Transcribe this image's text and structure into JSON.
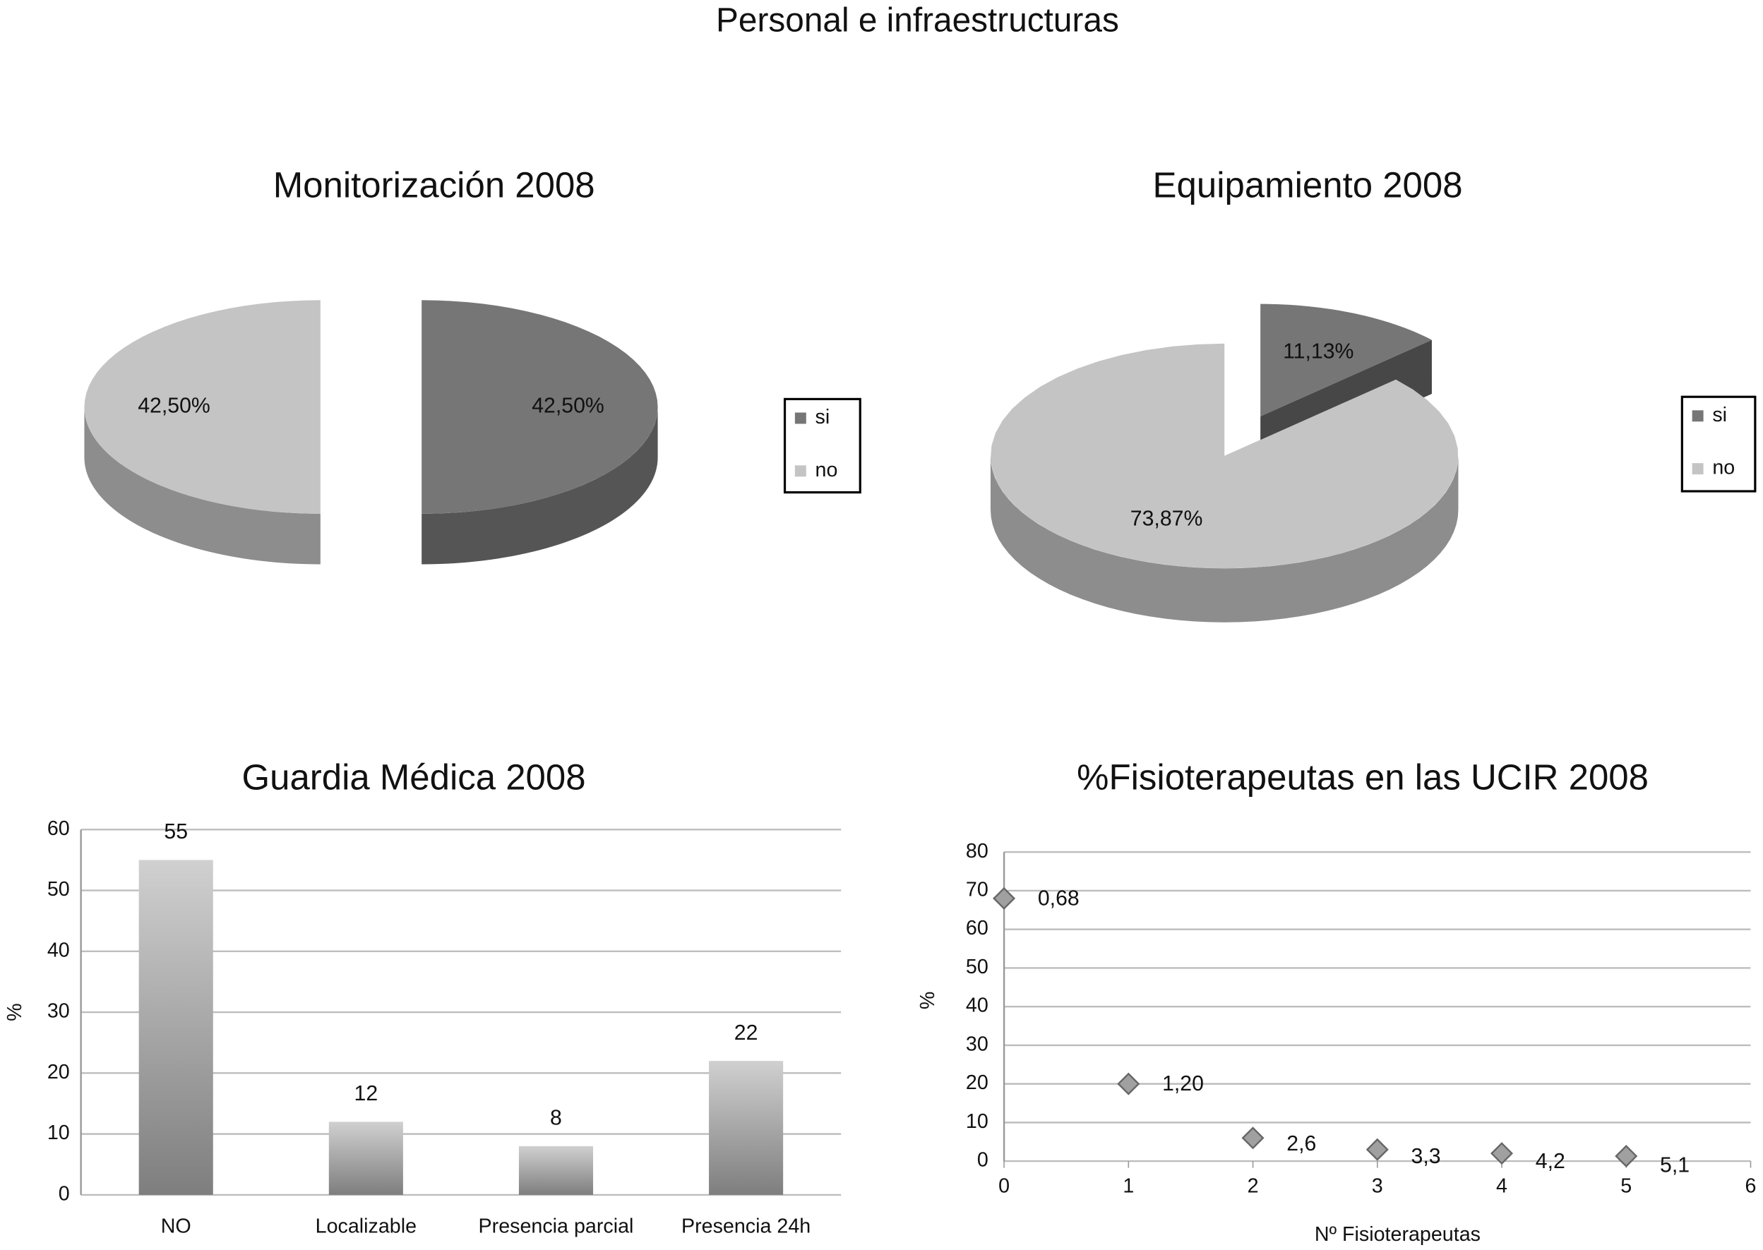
{
  "title": "Personal e infraestructuras",
  "chart_data": [
    {
      "type": "pie",
      "title": "Monitorización 2008",
      "series": [
        {
          "name": "si",
          "color": "#767676",
          "values": [
            42.5
          ],
          "value_labels": [
            "42,50%"
          ]
        },
        {
          "name": "no",
          "color": "#c4c4c4",
          "values": [
            42.5
          ],
          "value_labels": [
            "42,50%"
          ]
        }
      ],
      "legend": "right"
    },
    {
      "type": "pie",
      "title": "Equipamiento  2008",
      "series": [
        {
          "name": "si",
          "color": "#767676",
          "values": [
            11.13
          ],
          "value_labels": [
            "11,13%"
          ]
        },
        {
          "name": "no",
          "color": "#c4c4c4",
          "values": [
            73.87
          ],
          "value_labels": [
            "73,87%"
          ]
        }
      ],
      "legend": "right"
    },
    {
      "type": "bar",
      "title": "Guardia Médica 2008",
      "ylabel": "%",
      "categories": [
        "NO",
        "Localizable",
        "Presencia parcial",
        "Presencia 24h"
      ],
      "values": [
        55,
        12,
        8,
        22
      ],
      "color": "#a8a8a8",
      "ylim": [
        0,
        60
      ],
      "yticks": [
        0,
        10,
        20,
        30,
        40,
        50,
        60
      ],
      "grid": true
    },
    {
      "type": "scatter",
      "title": "%Fisioterapeutas en las UCIR 2008",
      "ylabel": "%",
      "xlabel": "Nº  Fisioterapeutas",
      "x": [
        0,
        1,
        2,
        3,
        4,
        5
      ],
      "values": [
        68,
        20,
        6,
        3,
        2,
        1.3
      ],
      "color": "#a0a0a0",
      "annotations": [
        "0,68",
        "1,20",
        "2,6",
        "3,3",
        "4,2",
        "5,1"
      ],
      "xlim": [
        0,
        6
      ],
      "xticks": [
        0,
        1,
        2,
        3,
        4,
        5,
        6
      ],
      "ylim": [
        0,
        80
      ],
      "yticks": [
        0,
        10,
        20,
        30,
        40,
        50,
        60,
        70,
        80
      ],
      "grid": true
    }
  ]
}
